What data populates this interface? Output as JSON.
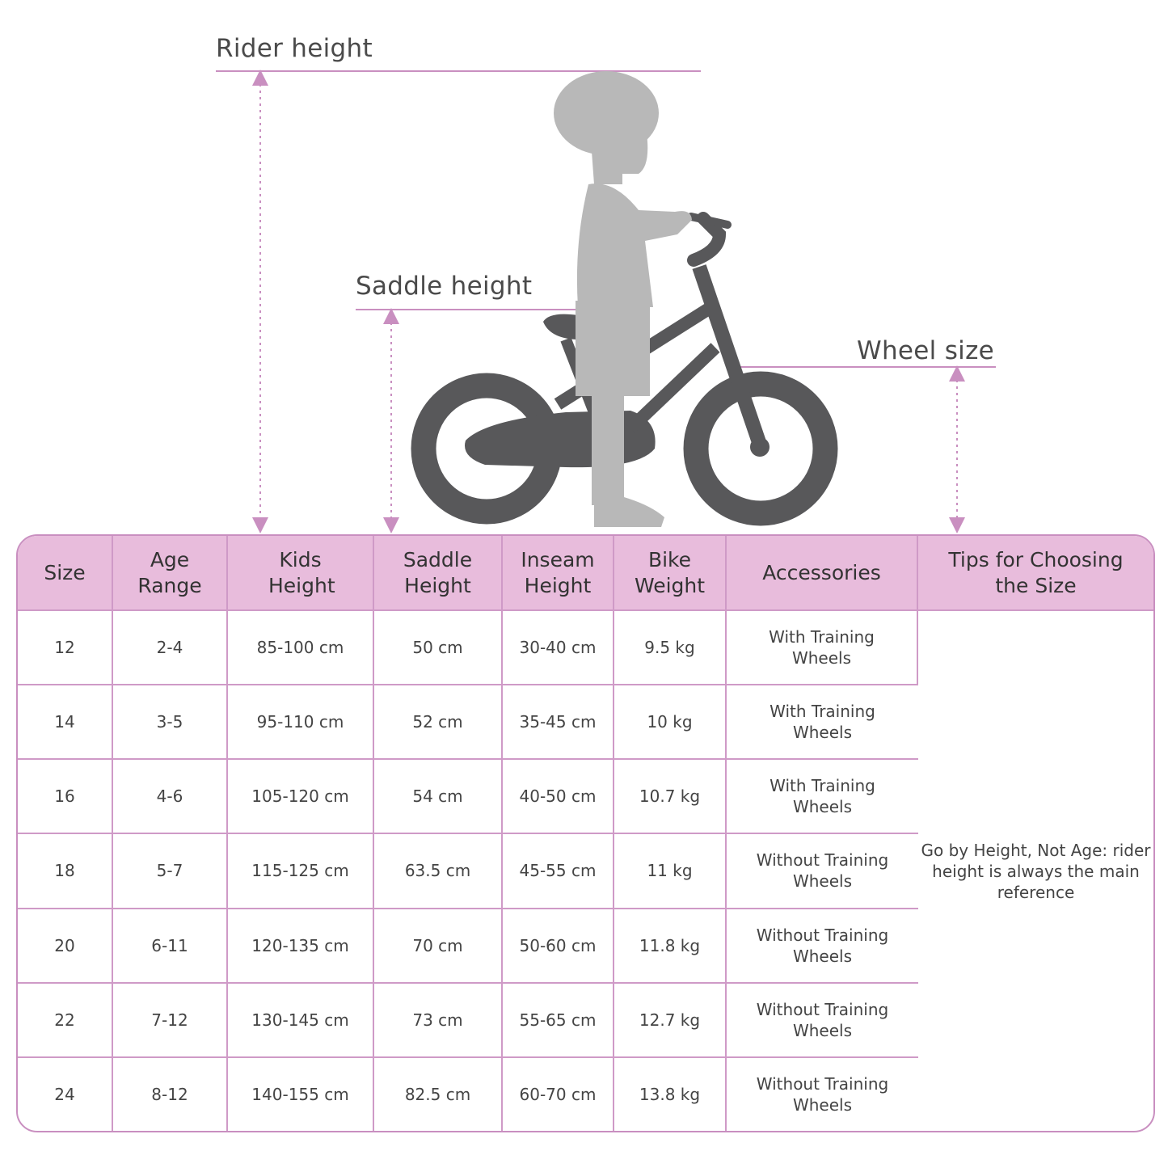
{
  "diagram": {
    "rider_height_label": "Rider height",
    "saddle_height_label": "Saddle height",
    "wheel_size_label": "Wheel size",
    "accent_color": "#c98fc0",
    "bike_color": "#58585a",
    "rider_color": "#b8b8b8"
  },
  "table": {
    "header_color": "#e8bcdc",
    "columns": [
      "Size",
      "Age Range",
      "Kids Height",
      "Saddle Height",
      "Inseam Height",
      "Bike Weight",
      "Accessories",
      "Tips for Choosing the Size"
    ],
    "rows": [
      [
        "12",
        "2-4",
        "85-100 cm",
        "50 cm",
        "30-40 cm",
        "9.5 kg",
        "With Training Wheels"
      ],
      [
        "14",
        "3-5",
        "95-110 cm",
        "52 cm",
        "35-45 cm",
        "10 kg",
        "With Training Wheels"
      ],
      [
        "16",
        "4-6",
        "105-120 cm",
        "54 cm",
        "40-50 cm",
        "10.7 kg",
        "With Training Wheels"
      ],
      [
        "18",
        "5-7",
        "115-125 cm",
        "63.5 cm",
        "45-55 cm",
        "11 kg",
        "Without Training Wheels"
      ],
      [
        "20",
        "6-11",
        "120-135 cm",
        "70 cm",
        "50-60 cm",
        "11.8 kg",
        "Without Training Wheels"
      ],
      [
        "22",
        "7-12",
        "130-145 cm",
        "73 cm",
        "55-65 cm",
        "12.7 kg",
        "Without Training Wheels"
      ],
      [
        "24",
        "8-12",
        "140-155 cm",
        "82.5 cm",
        "60-70 cm",
        "13.8 kg",
        "Without Training Wheels"
      ]
    ],
    "tip": "Go by Height, Not Age: rider height is always the main reference"
  }
}
